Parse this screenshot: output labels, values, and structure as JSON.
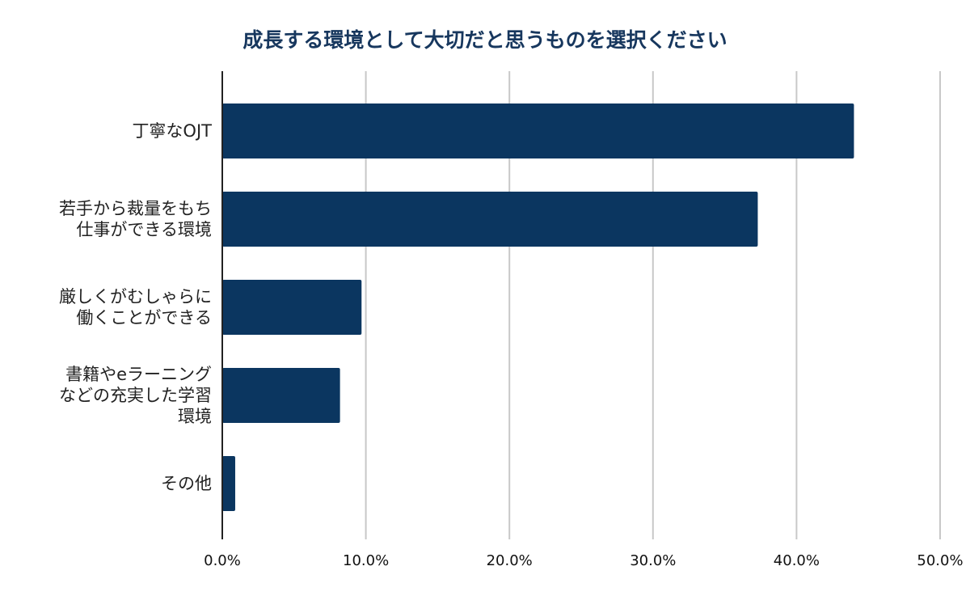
{
  "chart_data": {
    "type": "bar",
    "orientation": "horizontal",
    "title": "成長する環境として大切だと思うものを選択ください",
    "categories": [
      "丁寧なOJT",
      "若手から裁量をもち仕事ができる環境",
      "厳しくがむしゃらに働くことができる",
      "書籍やeラーニングなどの充実した学習環境",
      "その他"
    ],
    "category_display_lines": [
      [
        "丁寧なOJT"
      ],
      [
        "若手から裁量をもち",
        "仕事ができる環境"
      ],
      [
        "厳しくがむしゃらに",
        "働くことができる"
      ],
      [
        "書籍やeラーニング",
        "などの充実した学習",
        "環境"
      ],
      [
        "その他"
      ]
    ],
    "values": [
      44.0,
      37.3,
      9.7,
      8.2,
      0.9
    ],
    "xlim": [
      0,
      50
    ],
    "xticks": [
      0,
      10,
      20,
      30,
      40,
      50
    ],
    "xtick_labels": [
      "0.0%",
      "10.0%",
      "20.0%",
      "30.0%",
      "40.0%",
      "50.0%"
    ],
    "xlabel": "",
    "ylabel": "",
    "grid": "vertical",
    "legend": "none",
    "bar_color": "#0b3660",
    "title_color": "#17375e"
  }
}
